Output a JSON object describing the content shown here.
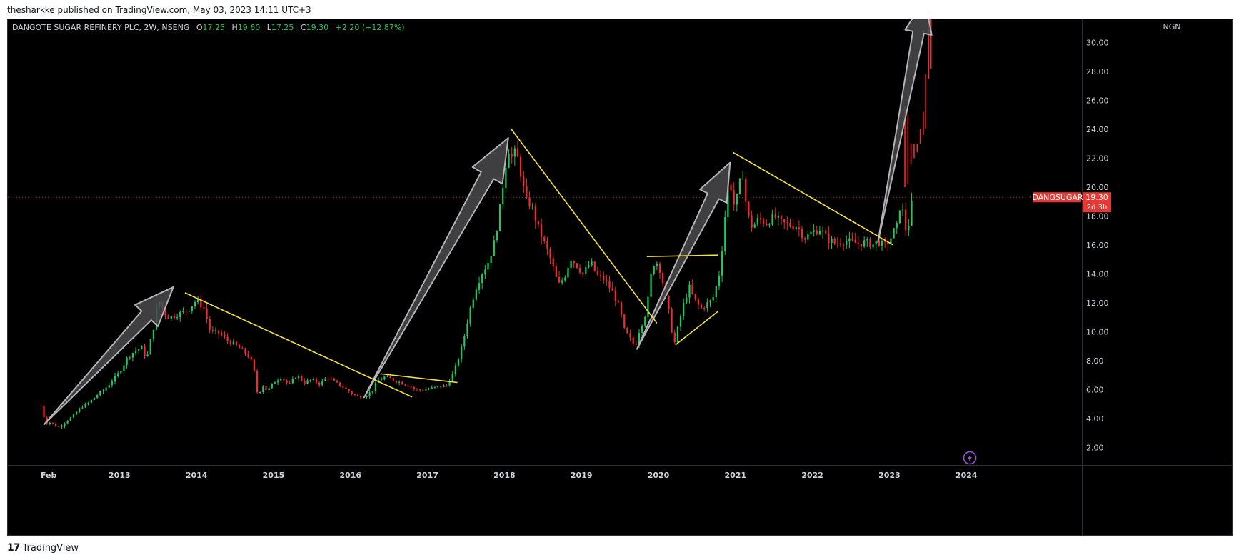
{
  "published_line": "thesharkke published on TradingView.com, May 03, 2023 14:11 UTC+3",
  "footer_brand": "TradingView",
  "colors": {
    "background": "#000000",
    "up": "#22c55e",
    "down": "#ef2b2b",
    "trendline": "#f5e339",
    "arrow_fill": "#4a4a4e",
    "arrow_stroke": "#b4b4b8",
    "price_label": "#e53935"
  },
  "chart_data": {
    "type": "candlestick",
    "legend": {
      "name": "DANGOTE SUGAR REFINERY PLC, 2W, NSENG",
      "o_label": "O",
      "o": "17.25",
      "h_label": "H",
      "h": "19.60",
      "l_label": "L",
      "l": "17.25",
      "c_label": "C",
      "c": "19.30",
      "change": "+2.20 (+12.87%)"
    },
    "currency": "NGN",
    "ylim": [
      0.8,
      31.6
    ],
    "y_ticks": [
      2,
      4,
      6,
      8,
      10,
      12,
      14,
      16,
      18,
      20,
      22,
      24,
      26,
      28,
      30
    ],
    "y_tick_labels": [
      "2.00",
      "4.00",
      "6.00",
      "8.00",
      "10.00",
      "12.00",
      "14.00",
      "16.00",
      "18.00",
      "20.00",
      "22.00",
      "24.00",
      "26.00",
      "28.00",
      "30.00"
    ],
    "x_ticks": [
      {
        "label": "Feb",
        "t": 2012.08
      },
      {
        "label": "2013",
        "t": 2013.0
      },
      {
        "label": "2014",
        "t": 2014.0
      },
      {
        "label": "2015",
        "t": 2015.0
      },
      {
        "label": "2016",
        "t": 2016.0
      },
      {
        "label": "2017",
        "t": 2017.0
      },
      {
        "label": "2018",
        "t": 2018.0
      },
      {
        "label": "2019",
        "t": 2019.0
      },
      {
        "label": "2020",
        "t": 2020.0
      },
      {
        "label": "2021",
        "t": 2021.0
      },
      {
        "label": "2022",
        "t": 2022.0
      },
      {
        "label": "2023",
        "t": 2023.0
      },
      {
        "label": "2024",
        "t": 2024.0
      }
    ],
    "xlim": [
      2011.55,
      2025.5
    ],
    "last_price": 19.3,
    "price_tag": {
      "symbol": "DANGSUGAR",
      "price": "19.30",
      "countdown": "2d 3h"
    },
    "price_path": [
      [
        2011.98,
        4.9
      ],
      [
        2012.04,
        3.7
      ],
      [
        2012.1,
        3.75
      ],
      [
        2012.17,
        3.5
      ],
      [
        2012.22,
        3.4
      ],
      [
        2012.3,
        3.8
      ],
      [
        2012.4,
        4.2
      ],
      [
        2012.5,
        4.8
      ],
      [
        2012.6,
        5.1
      ],
      [
        2012.7,
        5.6
      ],
      [
        2012.8,
        6.0
      ],
      [
        2012.9,
        6.6
      ],
      [
        2013.0,
        7.2
      ],
      [
        2013.1,
        8.2
      ],
      [
        2013.2,
        8.7
      ],
      [
        2013.3,
        8.9
      ],
      [
        2013.35,
        8.0
      ],
      [
        2013.4,
        9.3
      ],
      [
        2013.45,
        10.5
      ],
      [
        2013.5,
        12.3
      ],
      [
        2013.55,
        11.7
      ],
      [
        2013.62,
        11.0
      ],
      [
        2013.7,
        11.1
      ],
      [
        2013.8,
        11.3
      ],
      [
        2013.9,
        11.6
      ],
      [
        2014.0,
        12.2
      ],
      [
        2014.1,
        11.6
      ],
      [
        2014.18,
        10.0
      ],
      [
        2014.3,
        9.9
      ],
      [
        2014.4,
        9.4
      ],
      [
        2014.5,
        9.1
      ],
      [
        2014.6,
        8.7
      ],
      [
        2014.7,
        8.2
      ],
      [
        2014.75,
        7.2
      ],
      [
        2014.8,
        5.4
      ],
      [
        2014.85,
        6.4
      ],
      [
        2014.92,
        5.9
      ],
      [
        2015.0,
        6.5
      ],
      [
        2015.1,
        6.9
      ],
      [
        2015.2,
        6.3
      ],
      [
        2015.3,
        7.0
      ],
      [
        2015.4,
        6.5
      ],
      [
        2015.5,
        6.7
      ],
      [
        2015.6,
        6.4
      ],
      [
        2015.7,
        6.9
      ],
      [
        2015.8,
        6.5
      ],
      [
        2015.9,
        6.2
      ],
      [
        2016.0,
        5.8
      ],
      [
        2016.1,
        5.5
      ],
      [
        2016.2,
        5.6
      ],
      [
        2016.28,
        5.9
      ],
      [
        2016.35,
        6.6
      ],
      [
        2016.45,
        6.9
      ],
      [
        2016.55,
        6.7
      ],
      [
        2016.65,
        6.5
      ],
      [
        2016.75,
        6.3
      ],
      [
        2016.85,
        6.0
      ],
      [
        2016.95,
        6.0
      ],
      [
        2017.05,
        6.1
      ],
      [
        2017.15,
        6.2
      ],
      [
        2017.25,
        6.3
      ],
      [
        2017.35,
        7.3
      ],
      [
        2017.45,
        9.0
      ],
      [
        2017.55,
        11.5
      ],
      [
        2017.62,
        12.9
      ],
      [
        2017.7,
        14.0
      ],
      [
        2017.78,
        14.7
      ],
      [
        2017.86,
        16.0
      ],
      [
        2017.93,
        18.0
      ],
      [
        2018.0,
        21.0
      ],
      [
        2018.05,
        22.7
      ],
      [
        2018.1,
        22.0
      ],
      [
        2018.15,
        22.5
      ],
      [
        2018.2,
        21.3
      ],
      [
        2018.28,
        19.0
      ],
      [
        2018.35,
        18.8
      ],
      [
        2018.43,
        17.3
      ],
      [
        2018.5,
        16.4
      ],
      [
        2018.6,
        15.0
      ],
      [
        2018.7,
        13.2
      ],
      [
        2018.78,
        13.8
      ],
      [
        2018.86,
        15.1
      ],
      [
        2018.94,
        14.6
      ],
      [
        2019.02,
        14.0
      ],
      [
        2019.12,
        14.8
      ],
      [
        2019.2,
        13.9
      ],
      [
        2019.3,
        13.6
      ],
      [
        2019.4,
        12.8
      ],
      [
        2019.5,
        11.6
      ],
      [
        2019.55,
        10.2
      ],
      [
        2019.62,
        9.6
      ],
      [
        2019.7,
        9.0
      ],
      [
        2019.76,
        10.3
      ],
      [
        2019.82,
        11.0
      ],
      [
        2019.87,
        12.4
      ],
      [
        2019.92,
        14.6
      ],
      [
        2019.97,
        14.9
      ],
      [
        2020.03,
        14.2
      ],
      [
        2020.1,
        12.2
      ],
      [
        2020.15,
        11.0
      ],
      [
        2020.2,
        9.0
      ],
      [
        2020.27,
        10.7
      ],
      [
        2020.33,
        12.0
      ],
      [
        2020.4,
        13.1
      ],
      [
        2020.47,
        12.2
      ],
      [
        2020.55,
        11.6
      ],
      [
        2020.62,
        11.9
      ],
      [
        2020.7,
        12.2
      ],
      [
        2020.76,
        13.3
      ],
      [
        2020.8,
        14.3
      ],
      [
        2020.83,
        16.0
      ],
      [
        2020.87,
        18.3
      ],
      [
        2020.92,
        21.0
      ],
      [
        2020.97,
        18.7
      ],
      [
        2021.03,
        19.4
      ],
      [
        2021.09,
        21.2
      ],
      [
        2021.15,
        18.2
      ],
      [
        2021.22,
        17.2
      ],
      [
        2021.3,
        17.8
      ],
      [
        2021.4,
        17.5
      ],
      [
        2021.5,
        18.0
      ],
      [
        2021.6,
        17.5
      ],
      [
        2021.7,
        17.4
      ],
      [
        2021.8,
        17.3
      ],
      [
        2021.9,
        16.5
      ],
      [
        2022.0,
        16.9
      ],
      [
        2022.1,
        17.1
      ],
      [
        2022.2,
        16.4
      ],
      [
        2022.3,
        16.1
      ],
      [
        2022.4,
        16.3
      ],
      [
        2022.5,
        16.2
      ],
      [
        2022.6,
        16.1
      ],
      [
        2022.7,
        16.2
      ],
      [
        2022.78,
        16.0
      ],
      [
        2022.85,
        16.3
      ],
      [
        2022.92,
        15.9
      ],
      [
        2023.0,
        16.3
      ],
      [
        2023.06,
        17.0
      ],
      [
        2023.1,
        17.3
      ],
      [
        2023.15,
        19.3
      ],
      [
        2023.2,
        17.0
      ],
      [
        2023.26,
        17.6
      ],
      [
        2023.3,
        19.3
      ]
    ],
    "trendlines": [
      [
        [
          2013.85,
          12.7
        ],
        [
          2016.8,
          5.5
        ]
      ],
      [
        [
          2016.4,
          7.1
        ],
        [
          2017.39,
          6.5
        ]
      ],
      [
        [
          2018.09,
          24.0
        ],
        [
          2019.98,
          10.6
        ]
      ],
      [
        [
          2019.85,
          15.2
        ],
        [
          2020.77,
          15.3
        ]
      ],
      [
        [
          2020.22,
          9.1
        ],
        [
          2020.77,
          11.4
        ]
      ],
      [
        [
          2020.97,
          22.4
        ],
        [
          2023.05,
          16.0
        ]
      ]
    ],
    "arrows": [
      {
        "from": [
          2012.02,
          3.6
        ],
        "to": [
          2013.7,
          13.1
        ],
        "width": 44
      },
      {
        "from": [
          2016.18,
          5.5
        ],
        "to": [
          2018.05,
          23.4
        ],
        "width": 48
      },
      {
        "from": [
          2019.72,
          8.8
        ],
        "to": [
          2020.93,
          21.7
        ],
        "width": 42
      },
      {
        "from": [
          2022.85,
          16.2
        ],
        "to": [
          2023.46,
          33.0
        ],
        "width": 38
      }
    ],
    "overlay_future": [
      [
        2023.2,
        25.6,
        20.0
      ],
      [
        2023.24,
        25.0,
        20.2
      ],
      [
        2023.28,
        23.0,
        21.6
      ],
      [
        2023.32,
        23.0,
        22.0
      ],
      [
        2023.36,
        23.0,
        22.4
      ],
      [
        2023.4,
        24.0,
        23.0
      ],
      [
        2023.44,
        25.2,
        23.6
      ],
      [
        2023.47,
        27.8,
        24.0
      ],
      [
        2023.51,
        31.6,
        27.5
      ],
      [
        2023.54,
        31.9,
        28.2
      ]
    ]
  }
}
